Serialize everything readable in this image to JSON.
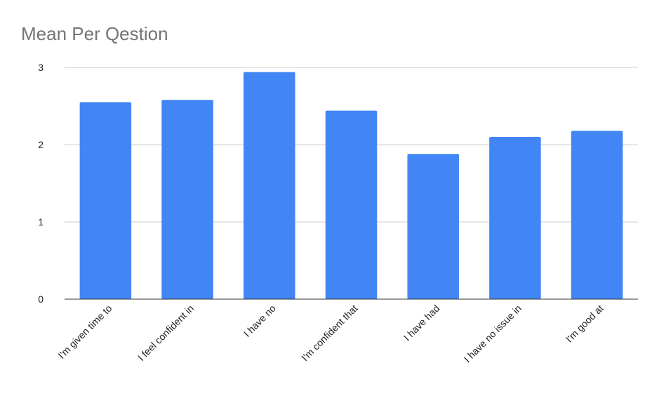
{
  "chart_data": {
    "type": "bar",
    "title": "Mean Per Qestion",
    "categories": [
      "I'm given time to",
      "I feel confident in",
      "I have no",
      "I'm confident that",
      "I have had",
      "I have no issue in",
      "I'm good at"
    ],
    "values": [
      2.55,
      2.58,
      2.94,
      2.44,
      1.88,
      2.1,
      2.18
    ],
    "ylim": [
      0,
      3
    ],
    "yticks": [
      "0",
      "1",
      "2",
      "3"
    ],
    "xlabel": "",
    "ylabel": "",
    "grid": true,
    "legend": "none",
    "bar_color": "#4285f4"
  }
}
